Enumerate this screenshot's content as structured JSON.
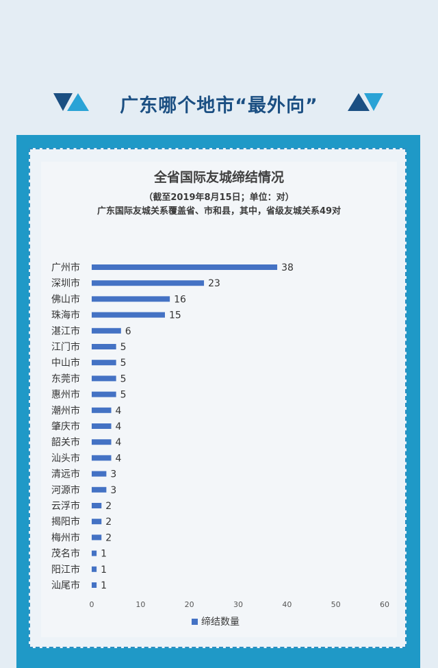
{
  "header": {
    "title": "广东哪个地市“最外向”",
    "colors": {
      "dark": "#1b4f82",
      "light": "#2aa3d6"
    }
  },
  "chart_data": {
    "type": "bar",
    "orientation": "horizontal",
    "title": "全省国际友城缔结情况",
    "subtitle": "（截至2019年8月15日；单位：对）",
    "note": "广东国际友城关系覆盖省、市和县，其中，省级友城关系49对",
    "categories": [
      "广州市",
      "深圳市",
      "佛山市",
      "珠海市",
      "湛江市",
      "江门市",
      "中山市",
      "东莞市",
      "惠州市",
      "潮州市",
      "肇庆市",
      "韶关市",
      "汕头市",
      "清远市",
      "河源市",
      "云浮市",
      "揭阳市",
      "梅州市",
      "茂名市",
      "阳江市",
      "汕尾市"
    ],
    "series": [
      {
        "name": "缔结数量",
        "values": [
          38,
          23,
          16,
          15,
          6,
          5,
          5,
          5,
          5,
          4,
          4,
          4,
          4,
          3,
          3,
          2,
          2,
          2,
          1,
          1,
          1
        ],
        "color": "#4472c4"
      }
    ],
    "xlim": [
      0,
      60
    ],
    "xticks": [
      0,
      10,
      20,
      30,
      40,
      50,
      60
    ],
    "legend_position": "bottom",
    "grid": false
  }
}
